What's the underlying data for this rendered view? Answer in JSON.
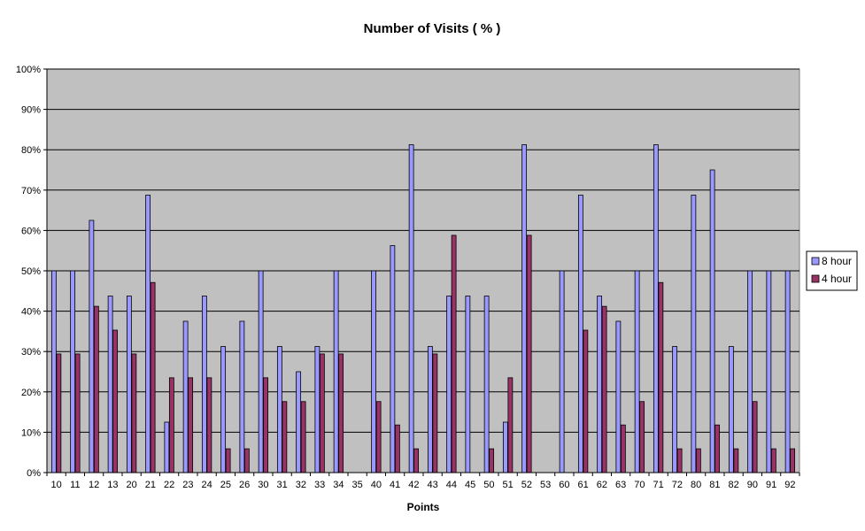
{
  "chart_data": {
    "type": "bar",
    "title": "Number of Visits ( % )",
    "xlabel": "Points",
    "ylabel": "",
    "ylim": [
      0,
      100
    ],
    "yticks": [
      "0%",
      "10%",
      "20%",
      "30%",
      "40%",
      "50%",
      "60%",
      "70%",
      "80%",
      "90%",
      "100%"
    ],
    "grid": true,
    "legend_position": "right",
    "categories": [
      "10",
      "11",
      "12",
      "13",
      "20",
      "21",
      "22",
      "23",
      "24",
      "25",
      "26",
      "30",
      "31",
      "32",
      "33",
      "34",
      "35",
      "40",
      "41",
      "42",
      "43",
      "44",
      "45",
      "50",
      "51",
      "52",
      "53",
      "60",
      "61",
      "62",
      "63",
      "70",
      "71",
      "72",
      "80",
      "81",
      "82",
      "90",
      "91",
      "92"
    ],
    "series": [
      {
        "name": "8 hour",
        "color": "#9999ff",
        "values": [
          50,
          50,
          62.5,
          43.75,
          43.75,
          68.75,
          12.5,
          37.5,
          43.75,
          31.25,
          37.5,
          50,
          31.25,
          25,
          31.25,
          50,
          0,
          50,
          56.25,
          81.25,
          31.25,
          43.75,
          43.75,
          43.75,
          12.5,
          81.25,
          0,
          50,
          68.75,
          43.75,
          37.5,
          50,
          81.25,
          31.25,
          68.75,
          75,
          31.25,
          50,
          50,
          50
        ]
      },
      {
        "name": "4 hour",
        "color": "#993366",
        "values": [
          29.4,
          29.4,
          41.2,
          35.3,
          29.4,
          47.1,
          23.5,
          23.5,
          23.5,
          5.9,
          5.9,
          23.5,
          17.6,
          17.6,
          29.4,
          29.4,
          0,
          17.6,
          11.8,
          5.9,
          29.4,
          58.8,
          0,
          5.9,
          23.5,
          58.8,
          0,
          0,
          35.3,
          41.2,
          11.8,
          17.6,
          47.1,
          5.9,
          5.9,
          11.8,
          5.9,
          17.6,
          5.9,
          5.9
        ]
      }
    ]
  },
  "colors": {
    "plot_background": "#c0c0c0",
    "gridline": "#000000"
  }
}
